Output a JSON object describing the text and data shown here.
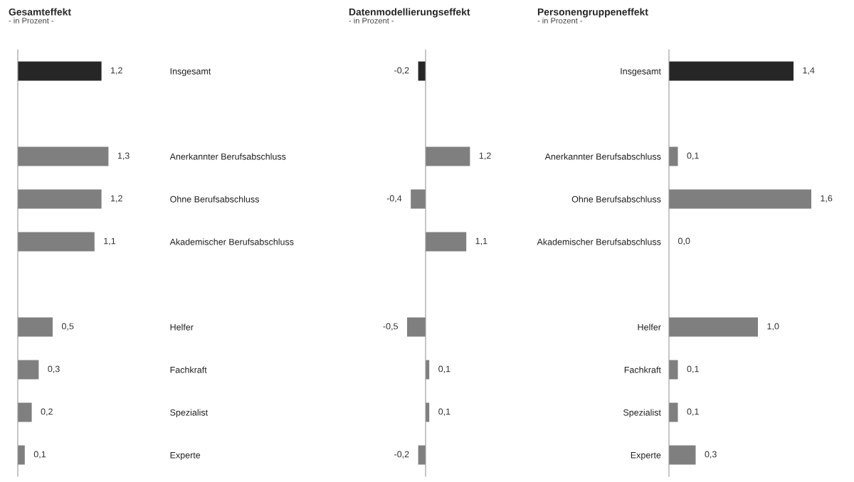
{
  "chart_data": [
    {
      "type": "bar",
      "orientation": "horizontal",
      "title": "Gesamteffekt",
      "subtitle": "- in Prozent -",
      "categories": [
        "Insgesamt",
        null,
        "Anerkannter Berufsabschluss",
        "Ohne Berufsabschluss",
        "Akademischer Berufsabschluss",
        null,
        "Helfer",
        "Fachkraft",
        "Spezialist",
        "Experte"
      ],
      "values": [
        1.2,
        null,
        1.3,
        1.2,
        1.1,
        null,
        0.5,
        0.3,
        0.2,
        0.1
      ],
      "colors": [
        "#262626",
        null,
        "#7f7f7f",
        "#7f7f7f",
        "#7f7f7f",
        null,
        "#7f7f7f",
        "#7f7f7f",
        "#7f7f7f",
        "#7f7f7f"
      ],
      "value_labels": [
        "1,2",
        null,
        "1,3",
        "1,2",
        "1,1",
        null,
        "0,5",
        "0,3",
        "0,2",
        "0,1"
      ],
      "tick_labels": "y"
    },
    {
      "type": "bar",
      "orientation": "horizontal",
      "title": "Datenmodellierungseffekt",
      "subtitle": "- in Prozent -",
      "categories": [
        null,
        null,
        null,
        null,
        null,
        null,
        null,
        null,
        null,
        null
      ],
      "values": [
        -0.2,
        null,
        1.2,
        -0.4,
        1.1,
        null,
        -0.5,
        0.1,
        0.1,
        -0.2
      ],
      "colors": [
        "#262626",
        null,
        "#7f7f7f",
        "#7f7f7f",
        "#7f7f7f",
        null,
        "#7f7f7f",
        "#7f7f7f",
        "#7f7f7f",
        "#7f7f7f"
      ],
      "value_labels": [
        "-0,2",
        null,
        "1,2",
        "-0,4",
        "1,1",
        null,
        "-0,5",
        "0,1",
        "0,1",
        "-0,2"
      ],
      "tick_labels": false
    },
    {
      "type": "bar",
      "orientation": "horizontal",
      "title": "Personengruppeneffekt",
      "subtitle": "- in Prozent -",
      "categories": [
        "Insgesamt",
        null,
        "Anerkannter Berufsabschluss",
        "Ohne Berufsabschluss",
        "Akademischer Berufsabschluss",
        null,
        "Helfer",
        "Fachkraft",
        "Spezialist",
        "Experte"
      ],
      "values": [
        1.4,
        null,
        0.1,
        1.6,
        0.0,
        null,
        1.0,
        0.1,
        0.1,
        0.3
      ],
      "colors": [
        "#262626",
        null,
        "#7f7f7f",
        "#7f7f7f",
        "#7f7f7f",
        null,
        "#7f7f7f",
        "#7f7f7f",
        "#7f7f7f",
        "#7f7f7f"
      ],
      "value_labels": [
        "1,4",
        null,
        "0,1",
        "1,6",
        "0,0",
        null,
        "1,0",
        "0,1",
        "0,1",
        "0,3"
      ],
      "tick_labels": "y"
    }
  ]
}
